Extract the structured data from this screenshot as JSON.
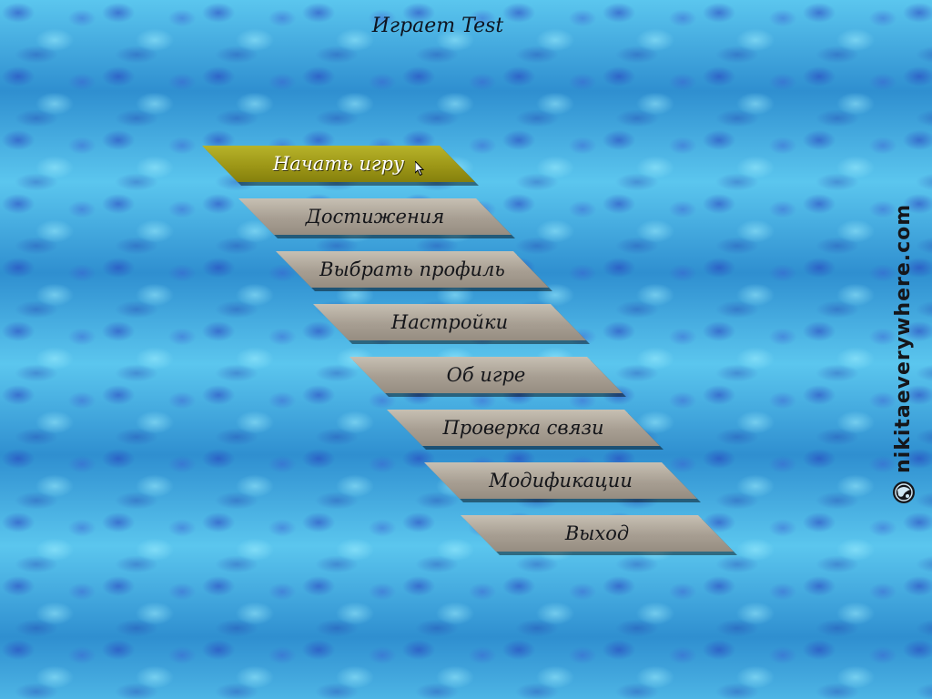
{
  "header": {
    "status_text": "Играет Test"
  },
  "menu": {
    "items": [
      {
        "label": "Начать игру",
        "state": "hovered"
      },
      {
        "label": "Достижения",
        "state": "normal"
      },
      {
        "label": "Выбрать профиль",
        "state": "normal"
      },
      {
        "label": "Настройки",
        "state": "normal"
      },
      {
        "label": "Об игре",
        "state": "normal"
      },
      {
        "label": "Проверка связи",
        "state": "normal"
      },
      {
        "label": "Модификации",
        "state": "normal"
      },
      {
        "label": "Выход",
        "state": "normal"
      }
    ]
  },
  "watermark": {
    "text": "nikitaeverywhere.com",
    "icon": "globe-logo-icon"
  },
  "colors": {
    "background": "#3aa3d8",
    "button_normal": "#a79e92",
    "button_hover": "#9d9717",
    "text_dark": "#15161a",
    "text_active": "#ffffff"
  }
}
